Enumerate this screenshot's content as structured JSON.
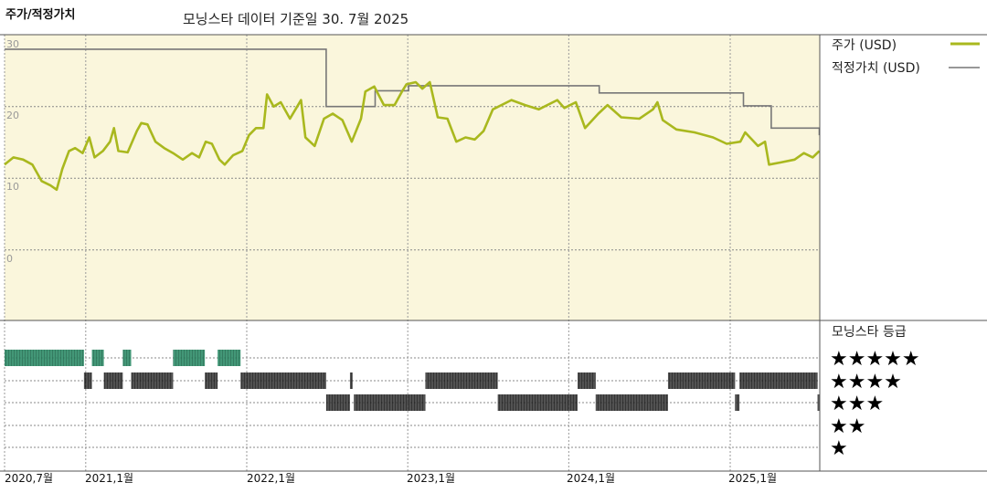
{
  "header": {
    "title": "주가/적정가치",
    "subtitle": "모닝스타 데이터 기준일 30. 7월 2025"
  },
  "colors": {
    "price": "#a9b81e",
    "fair_value": "#777777",
    "plot_background": "#faf6dc",
    "five_star": "#2e8b68",
    "rated": "#333333"
  },
  "chart_data": [
    {
      "type": "line",
      "title": "주가/적정가치",
      "ylim": [
        0,
        30
      ],
      "y_ticks": [
        "30",
        "20",
        "10",
        "0"
      ],
      "x_ticks": [
        "2020,7월",
        "2021,1월",
        "2022,1월",
        "2023,1월",
        "2024,1월",
        "2025,1월"
      ],
      "x_tick_dates": [
        "2020-07-01",
        "2021-01-01",
        "2022-01-01",
        "2023-01-01",
        "2024-01-01",
        "2025-01-01"
      ],
      "grid": true,
      "legend_position": "right",
      "series": [
        {
          "name": "주가 (USD)",
          "points": [
            [
              "2020-07-01",
              11.9
            ],
            [
              "2020-07-21",
              12.9
            ],
            [
              "2020-08-12",
              12.6
            ],
            [
              "2020-09-02",
              11.9
            ],
            [
              "2020-09-23",
              9.6
            ],
            [
              "2020-10-13",
              9.0
            ],
            [
              "2020-10-27",
              8.4
            ],
            [
              "2020-11-09",
              11.3
            ],
            [
              "2020-11-24",
              13.8
            ],
            [
              "2020-12-08",
              14.2
            ],
            [
              "2020-12-25",
              13.5
            ],
            [
              "2021-01-09",
              15.7
            ],
            [
              "2021-01-21",
              12.9
            ],
            [
              "2021-02-09",
              13.8
            ],
            [
              "2021-02-25",
              15.1
            ],
            [
              "2021-03-06",
              17.0
            ],
            [
              "2021-03-16",
              13.8
            ],
            [
              "2021-04-06",
              13.6
            ],
            [
              "2021-04-27",
              16.6
            ],
            [
              "2021-05-07",
              17.7
            ],
            [
              "2021-05-21",
              17.5
            ],
            [
              "2021-06-08",
              15.1
            ],
            [
              "2021-06-28",
              14.2
            ],
            [
              "2021-07-18",
              13.5
            ],
            [
              "2021-08-09",
              12.6
            ],
            [
              "2021-08-30",
              13.5
            ],
            [
              "2021-09-15",
              12.9
            ],
            [
              "2021-09-30",
              15.1
            ],
            [
              "2021-10-14",
              14.8
            ],
            [
              "2021-10-31",
              12.6
            ],
            [
              "2021-11-12",
              11.9
            ],
            [
              "2021-12-01",
              13.2
            ],
            [
              "2021-12-22",
              13.8
            ],
            [
              "2022-01-06",
              16.0
            ],
            [
              "2022-01-22",
              17.0
            ],
            [
              "2022-02-08",
              17.0
            ],
            [
              "2022-02-16",
              21.7
            ],
            [
              "2022-03-03",
              20.0
            ],
            [
              "2022-03-19",
              20.6
            ],
            [
              "2022-04-09",
              18.3
            ],
            [
              "2022-05-04",
              20.9
            ],
            [
              "2022-05-14",
              15.7
            ],
            [
              "2022-06-04",
              14.5
            ],
            [
              "2022-06-25",
              18.3
            ],
            [
              "2022-07-15",
              19.0
            ],
            [
              "2022-08-06",
              18.1
            ],
            [
              "2022-08-27",
              15.1
            ],
            [
              "2022-09-17",
              18.3
            ],
            [
              "2022-09-27",
              22.1
            ],
            [
              "2022-10-17",
              22.8
            ],
            [
              "2022-11-08",
              20.2
            ],
            [
              "2022-12-02",
              20.2
            ],
            [
              "2022-12-19",
              22.1
            ],
            [
              "2022-12-29",
              23.1
            ],
            [
              "2023-01-19",
              23.4
            ],
            [
              "2023-02-03",
              22.5
            ],
            [
              "2023-02-20",
              23.4
            ],
            [
              "2023-03-10",
              18.5
            ],
            [
              "2023-04-01",
              18.3
            ],
            [
              "2023-04-21",
              15.1
            ],
            [
              "2023-05-12",
              15.7
            ],
            [
              "2023-06-02",
              15.4
            ],
            [
              "2023-06-22",
              16.6
            ],
            [
              "2023-07-13",
              19.6
            ],
            [
              "2023-08-24",
              20.9
            ],
            [
              "2023-09-24",
              20.2
            ],
            [
              "2023-10-25",
              19.6
            ],
            [
              "2023-12-06",
              20.9
            ],
            [
              "2023-12-22",
              19.8
            ],
            [
              "2024-01-17",
              20.6
            ],
            [
              "2024-02-07",
              17.0
            ],
            [
              "2024-03-08",
              19.0
            ],
            [
              "2024-03-29",
              20.2
            ],
            [
              "2024-04-29",
              18.5
            ],
            [
              "2024-06-09",
              18.3
            ],
            [
              "2024-07-10",
              19.6
            ],
            [
              "2024-07-20",
              20.6
            ],
            [
              "2024-08-01",
              18.1
            ],
            [
              "2024-09-01",
              16.8
            ],
            [
              "2024-10-12",
              16.4
            ],
            [
              "2024-11-23",
              15.7
            ],
            [
              "2024-12-24",
              14.8
            ],
            [
              "2025-01-24",
              15.1
            ],
            [
              "2025-02-04",
              16.4
            ],
            [
              "2025-03-05",
              14.5
            ],
            [
              "2025-03-21",
              15.1
            ],
            [
              "2025-03-30",
              11.9
            ],
            [
              "2025-04-26",
              12.2
            ],
            [
              "2025-05-27",
              12.6
            ],
            [
              "2025-06-17",
              13.5
            ],
            [
              "2025-07-07",
              12.9
            ],
            [
              "2025-07-22",
              13.8
            ]
          ]
        },
        {
          "name": "적정가치 (USD)",
          "step": true,
          "points": [
            [
              "2020-07-01",
              28.0
            ],
            [
              "2022-06-30",
              20.0
            ],
            [
              "2022-10-19",
              22.2
            ],
            [
              "2023-01-03",
              22.9
            ],
            [
              "2024-03-10",
              21.9
            ],
            [
              "2025-01-31",
              20.1
            ],
            [
              "2025-04-04",
              17.0
            ],
            [
              "2025-07-22",
              16.0
            ]
          ]
        }
      ]
    },
    {
      "type": "timeline",
      "title": "모닝스타 등급",
      "rows": [
        {
          "label": "★★★★★",
          "stars": 5,
          "ranges": [
            [
              "2020-07-01",
              "2020-12-28"
            ],
            [
              "2021-01-15",
              "2021-02-11"
            ],
            [
              "2021-03-26",
              "2021-04-14"
            ],
            [
              "2021-07-18",
              "2021-09-28"
            ],
            [
              "2021-10-27",
              "2021-12-18"
            ]
          ]
        },
        {
          "label": "★★★★",
          "stars": 4,
          "ranges": [
            [
              "2020-12-28",
              "2021-01-15"
            ],
            [
              "2021-02-11",
              "2021-03-26"
            ],
            [
              "2021-04-14",
              "2021-07-18"
            ],
            [
              "2021-09-28",
              "2021-10-27"
            ],
            [
              "2021-12-18",
              "2022-06-30"
            ],
            [
              "2022-08-23",
              "2022-08-29"
            ],
            [
              "2023-02-10",
              "2023-07-24"
            ],
            [
              "2024-01-21",
              "2024-03-02"
            ],
            [
              "2024-08-13",
              "2025-01-12"
            ],
            [
              "2025-01-22",
              "2025-07-18"
            ]
          ]
        },
        {
          "label": "★★★",
          "stars": 3,
          "ranges": [
            [
              "2022-06-30",
              "2022-08-23"
            ],
            [
              "2022-09-01",
              "2023-02-10"
            ],
            [
              "2023-07-24",
              "2024-01-21"
            ],
            [
              "2024-03-02",
              "2024-08-13"
            ],
            [
              "2025-01-12",
              "2025-01-22"
            ],
            [
              "2025-07-18",
              "2025-07-22"
            ]
          ]
        },
        {
          "label": "★★",
          "stars": 2,
          "ranges": []
        },
        {
          "label": "★",
          "stars": 1,
          "ranges": []
        }
      ]
    }
  ]
}
